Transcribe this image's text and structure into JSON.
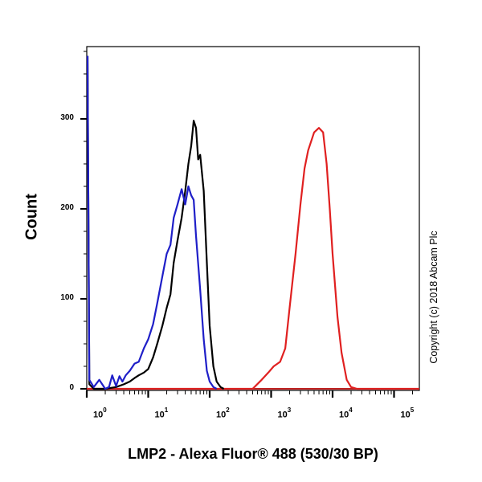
{
  "chart_data": {
    "type": "line",
    "title": "",
    "xlabel": "LMP2 - Alexa Fluor® 488 (530/30 BP)",
    "ylabel": "Count",
    "xscale": "log",
    "xlim": [
      1,
      200000
    ],
    "ylim": [
      0,
      380
    ],
    "yticks": [
      0,
      100,
      200,
      300
    ],
    "xticks": [
      "10^0",
      "10^1",
      "10^2",
      "10^3",
      "10^4",
      "10^5"
    ],
    "grid": false,
    "legend": null,
    "annotation": "Copyright (c) 2018 Abcam Plc",
    "series": [
      {
        "name": "blue",
        "color": "#1f1fc8",
        "x": [
          1.0,
          1.1,
          1.3,
          1.6,
          2.0,
          2.3,
          2.6,
          3.0,
          3.4,
          3.8,
          4.3,
          5.0,
          6.0,
          7.0,
          8.5,
          10,
          12,
          14,
          17,
          20,
          23,
          26,
          30,
          35,
          40,
          45,
          50,
          55,
          60,
          70,
          80,
          90,
          100,
          115,
          130
        ],
        "values": [
          370,
          10,
          2,
          10,
          0,
          2,
          15,
          3,
          14,
          8,
          15,
          20,
          28,
          30,
          45,
          55,
          72,
          95,
          125,
          150,
          160,
          190,
          205,
          222,
          205,
          225,
          215,
          210,
          170,
          110,
          55,
          20,
          8,
          2,
          0
        ]
      },
      {
        "name": "black",
        "color": "#000000",
        "x": [
          1.0,
          1.1,
          1.3,
          2.0,
          3.0,
          4.0,
          5.0,
          6.0,
          7.0,
          8.5,
          10,
          12,
          14,
          17,
          20,
          23,
          26,
          30,
          35,
          40,
          45,
          50,
          55,
          60,
          65,
          70,
          80,
          90,
          100,
          115,
          130,
          150,
          170
        ],
        "values": [
          370,
          5,
          0,
          0,
          2,
          5,
          8,
          12,
          15,
          18,
          22,
          35,
          50,
          70,
          90,
          105,
          140,
          165,
          190,
          220,
          250,
          270,
          298,
          290,
          255,
          260,
          220,
          140,
          70,
          25,
          8,
          2,
          0
        ]
      },
      {
        "name": "red",
        "color": "#e02020",
        "x": [
          500,
          700,
          900,
          1100,
          1400,
          1700,
          2000,
          2500,
          3000,
          3500,
          4000,
          5000,
          6000,
          7000,
          8000,
          9000,
          10000,
          12000,
          14000,
          17000,
          20000,
          25000
        ],
        "values": [
          0,
          10,
          18,
          25,
          30,
          45,
          90,
          150,
          205,
          245,
          265,
          285,
          290,
          285,
          250,
          200,
          150,
          80,
          40,
          10,
          2,
          0
        ]
      }
    ]
  },
  "labels": {
    "ylabel": "Count",
    "xlabel": "LMP2 - Alexa Fluor® 488 (530/30 BP)",
    "copyright": "Copyright (c) 2018 Abcam Plc",
    "yticks": [
      "0",
      "100",
      "200",
      "300"
    ],
    "xtick_base": "10",
    "xtick_exp": [
      "0",
      "1",
      "2",
      "3",
      "4",
      "5"
    ]
  }
}
